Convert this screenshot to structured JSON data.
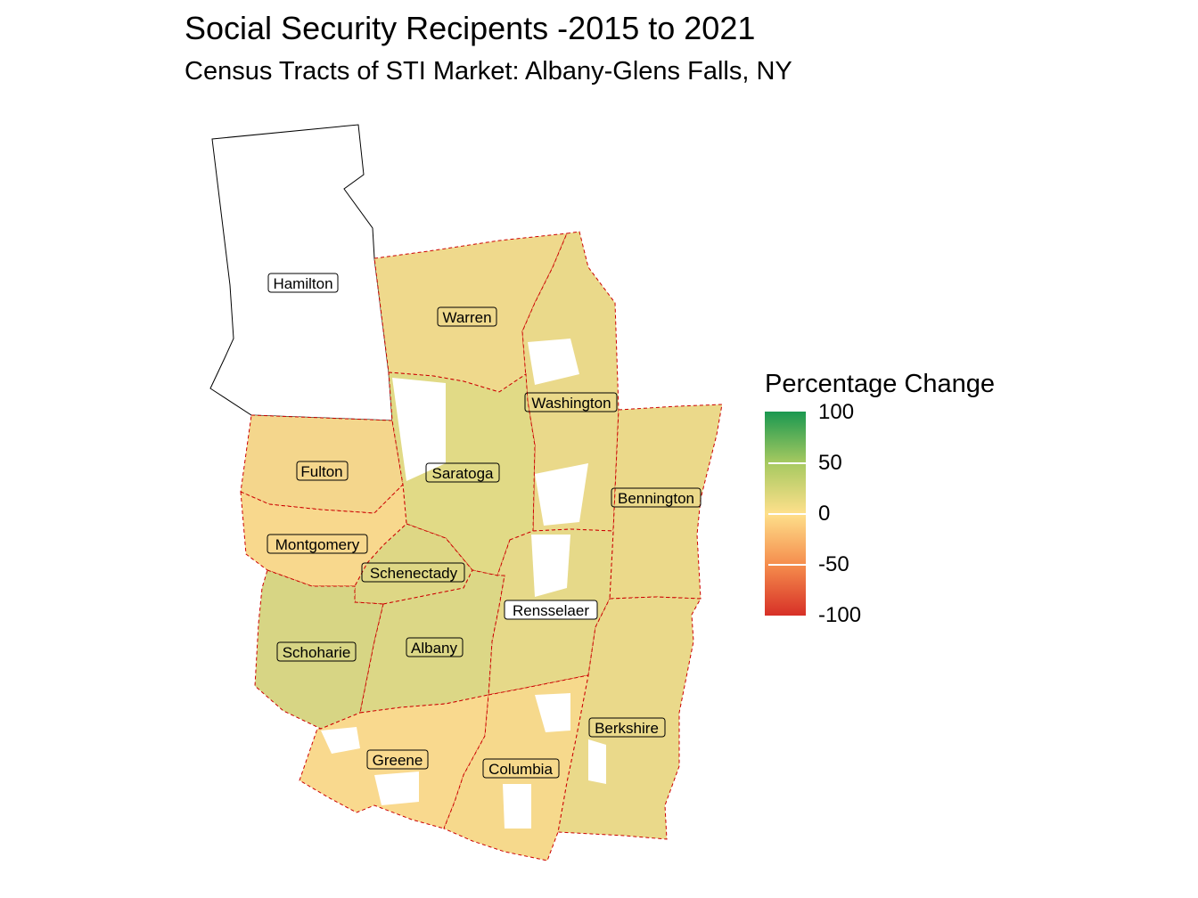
{
  "title": "Social Security Recipents -2015 to 2021",
  "subtitle": "Census Tracts of STI Market: Albany-Glens Falls, NY",
  "legend": {
    "title": "Percentage Change",
    "ticks": [
      "100",
      "50",
      "0",
      "-50",
      "-100"
    ],
    "range": [
      -100,
      100
    ],
    "colors": {
      "high": "#1a9850",
      "mid_high": "#a6c960",
      "mid": "#fee08b",
      "mid_low": "#f58d4d",
      "low": "#d73027"
    }
  },
  "map": {
    "boundary_style": "red dashed county lines",
    "no_data_color": "#ffffff",
    "counties": [
      {
        "name": "Hamilton",
        "label": "Hamilton",
        "color": "#ffffff"
      },
      {
        "name": "Warren",
        "label": "Warren",
        "color": "#efd98c"
      },
      {
        "name": "Washington",
        "label": "Washington",
        "color": "#ead98a"
      },
      {
        "name": "Fulton",
        "label": "Fulton",
        "color": "#f4d68c"
      },
      {
        "name": "Saratoga",
        "label": "Saratoga",
        "color": "#e1da86"
      },
      {
        "name": "Bennington",
        "label": "Bennington",
        "color": "#ebd98a"
      },
      {
        "name": "Montgomery",
        "label": "Montgomery",
        "color": "#f8d88d"
      },
      {
        "name": "Schenectady",
        "label": "Schenectady",
        "color": "#ded785"
      },
      {
        "name": "Rensselaer",
        "label": "Rensselaer",
        "color": "#e6d989"
      },
      {
        "name": "Schoharie",
        "label": "Schoharie",
        "color": "#d7d584"
      },
      {
        "name": "Albany",
        "label": "Albany",
        "color": "#dcd786"
      },
      {
        "name": "Berkshire",
        "label": "Berkshire",
        "color": "#ead98a"
      },
      {
        "name": "Greene",
        "label": "Greene",
        "color": "#f9d98e"
      },
      {
        "name": "Columbia",
        "label": "Columbia",
        "color": "#f6d98c"
      }
    ]
  }
}
